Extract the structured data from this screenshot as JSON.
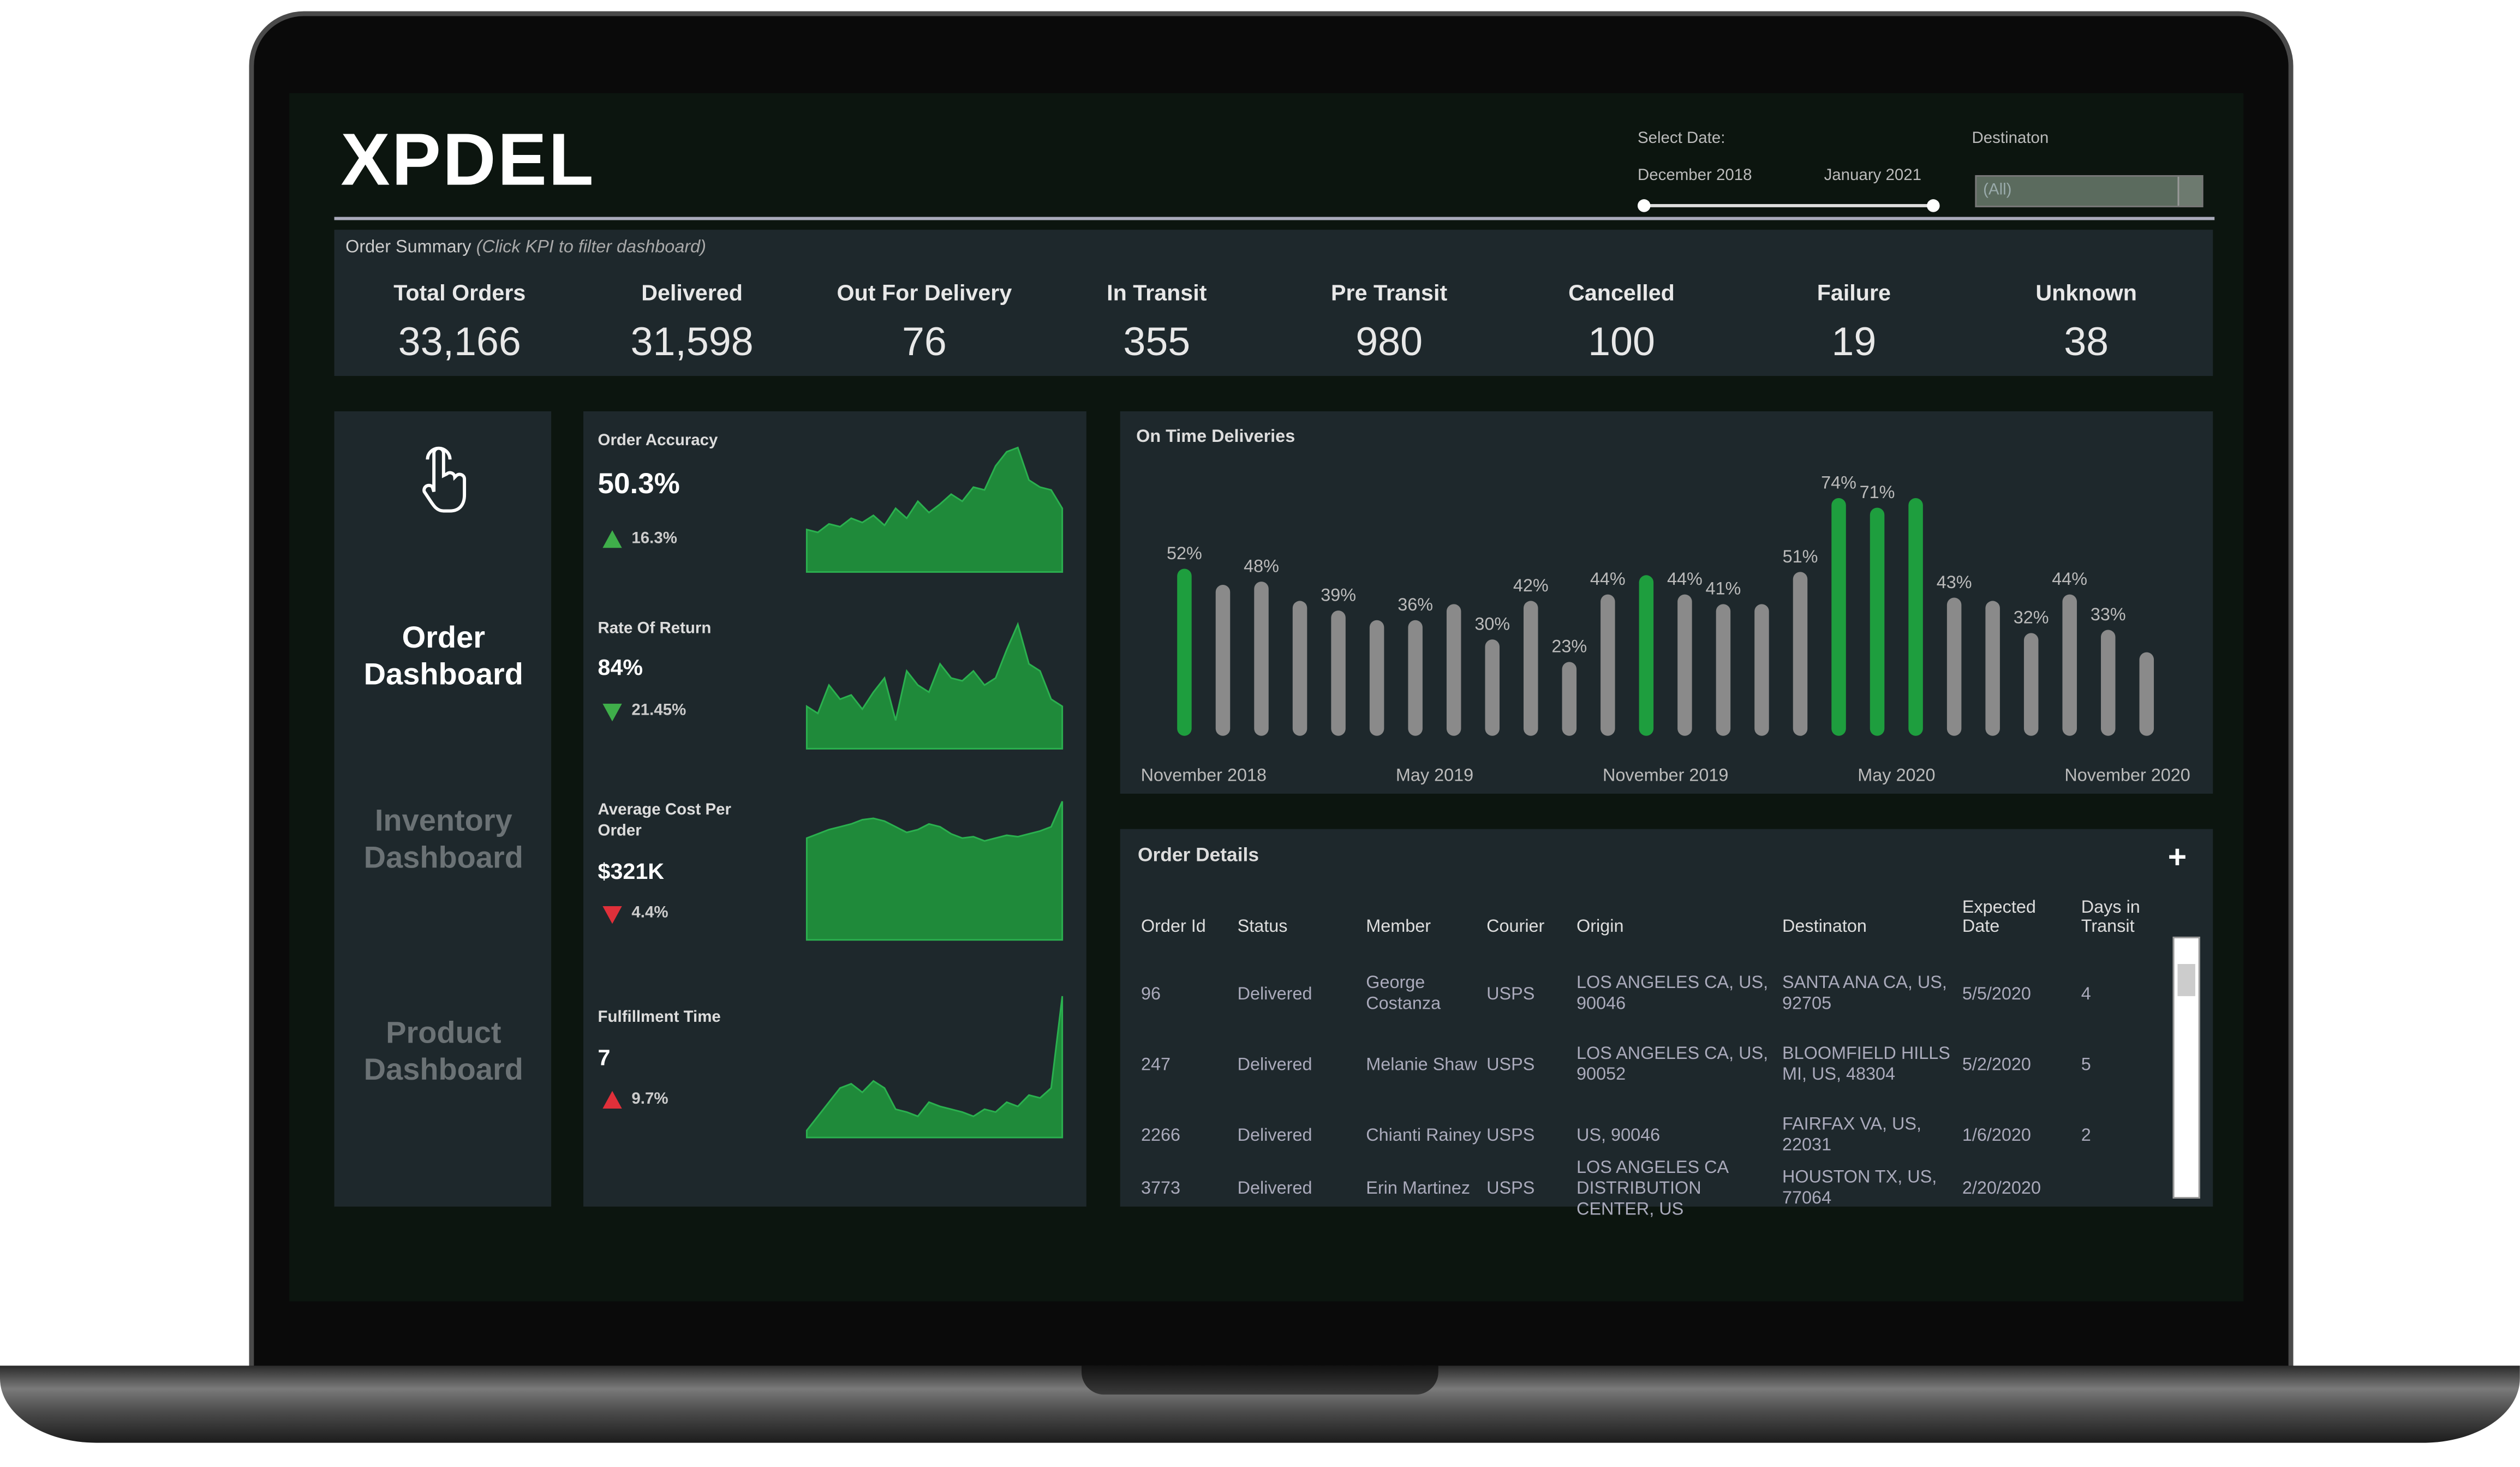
{
  "header": {
    "logo": "XPDEL",
    "select_date_label": "Select Date:",
    "date_start": "December 2018",
    "date_end": "January 2021",
    "destination_label": "Destinaton",
    "destination_value": "(All)"
  },
  "summary": {
    "title": "Order Summary",
    "hint": "(Click KPI to filter dashboard)",
    "kpis": [
      {
        "label": "Total Orders",
        "value": "33,166"
      },
      {
        "label": "Delivered",
        "value": "31,598"
      },
      {
        "label": "Out For Delivery",
        "value": "76"
      },
      {
        "label": "In Transit",
        "value": "355"
      },
      {
        "label": "Pre Transit",
        "value": "980"
      },
      {
        "label": "Cancelled",
        "value": "100"
      },
      {
        "label": "Failure",
        "value": "19"
      },
      {
        "label": "Unknown",
        "value": "38"
      }
    ]
  },
  "nav": [
    "Order Dashboard",
    "Inventory Dashboard",
    "Product Dashboard"
  ],
  "metrics": [
    {
      "title": "Order Accuracy",
      "value": "50.3%",
      "change": "16.3%",
      "direction": "up",
      "change_color": "#3fae4a",
      "color": "#1f8a3a",
      "spark": [
        30,
        28,
        34,
        32,
        38,
        35,
        40,
        33,
        45,
        38,
        50,
        42,
        48,
        55,
        50,
        60,
        58,
        75,
        85,
        88,
        65,
        60,
        58,
        45
      ]
    },
    {
      "title": "Rate Of Return",
      "value": "84%",
      "change": "21.45%",
      "direction": "down",
      "change_color": "#3fae4a",
      "color": "#1f8a3a",
      "spark": [
        30,
        25,
        45,
        35,
        38,
        28,
        40,
        50,
        20,
        55,
        45,
        40,
        60,
        50,
        48,
        55,
        45,
        50,
        70,
        88,
        60,
        55,
        35,
        30
      ]
    },
    {
      "title": "Average Cost Per Order",
      "value": "$321K",
      "change": "4.4%",
      "direction": "down",
      "change_color": "#e0303a",
      "color": "#1f8a3a",
      "spark": [
        72,
        75,
        78,
        80,
        82,
        85,
        86,
        84,
        80,
        76,
        78,
        82,
        80,
        75,
        72,
        73,
        70,
        72,
        74,
        73,
        75,
        77,
        80,
        98
      ]
    },
    {
      "title": "Fulfillment Time",
      "value": "7",
      "change": "9.7%",
      "direction": "up",
      "change_color": "#e0303a",
      "color": "#1f8a3a",
      "spark": [
        5,
        15,
        25,
        35,
        38,
        32,
        40,
        35,
        20,
        18,
        15,
        25,
        22,
        20,
        18,
        15,
        20,
        18,
        25,
        22,
        30,
        28,
        35,
        100
      ]
    }
  ],
  "chart_data": {
    "type": "bar",
    "title": "On Time Deliveries",
    "categories": [
      "November 2018",
      null,
      null,
      null,
      null,
      null,
      "May 2019",
      null,
      null,
      null,
      null,
      null,
      "November 2019",
      null,
      null,
      null,
      null,
      null,
      "May 2020",
      null,
      null,
      null,
      null,
      null,
      "November 2020",
      null
    ],
    "values": [
      52,
      47,
      48,
      42,
      39,
      36,
      36,
      41,
      30,
      42,
      23,
      44,
      50,
      44,
      41,
      41,
      51,
      74,
      71,
      74,
      43,
      42,
      32,
      44,
      33,
      26
    ],
    "value_labels": [
      "52%",
      null,
      "48%",
      null,
      "39%",
      null,
      "36%",
      null,
      "30%",
      "42%",
      "23%",
      "44%",
      null,
      "44%",
      "41%",
      null,
      "51%",
      "74%",
      "71%",
      null,
      "43%",
      null,
      "32%",
      "44%",
      "33%",
      null
    ],
    "colors": [
      "#1e9e3e",
      "#8a8a8a",
      "#8a8a8a",
      "#8a8a8a",
      "#8a8a8a",
      "#8a8a8a",
      "#8a8a8a",
      "#8a8a8a",
      "#8a8a8a",
      "#8a8a8a",
      "#8a8a8a",
      "#8a8a8a",
      "#1e9e3e",
      "#8a8a8a",
      "#8a8a8a",
      "#8a8a8a",
      "#8a8a8a",
      "#1e9e3e",
      "#1e9e3e",
      "#1e9e3e",
      "#8a8a8a",
      "#8a8a8a",
      "#8a8a8a",
      "#8a8a8a",
      "#8a8a8a",
      "#8a8a8a"
    ]
  },
  "order_details": {
    "title": "Order Details",
    "columns": [
      "Order Id",
      "Status",
      "Member",
      "Courier",
      "Origin",
      "Destinaton",
      "Expected Date",
      "Days in Transit"
    ],
    "rows": [
      [
        "96",
        "Delivered",
        "George Costanza",
        "USPS",
        "LOS ANGELES CA, US, 90046",
        "SANTA ANA CA, US, 92705",
        "5/5/2020",
        "4"
      ],
      [
        "247",
        "Delivered",
        "Melanie Shaw",
        "USPS",
        "LOS ANGELES CA, US, 90052",
        "BLOOMFIELD HILLS MI, US, 48304",
        "5/2/2020",
        "5"
      ],
      [
        "2266",
        "Delivered",
        "Chianti Rainey",
        "USPS",
        "US, 90046",
        "FAIRFAX VA, US, 22031",
        "1/6/2020",
        "2"
      ],
      [
        "3773",
        "Delivered",
        "Erin Martinez",
        "USPS",
        "LOS ANGELES CA DISTRIBUTION CENTER, US",
        "HOUSTON TX, US, 77064",
        "2/20/2020",
        null
      ]
    ]
  }
}
